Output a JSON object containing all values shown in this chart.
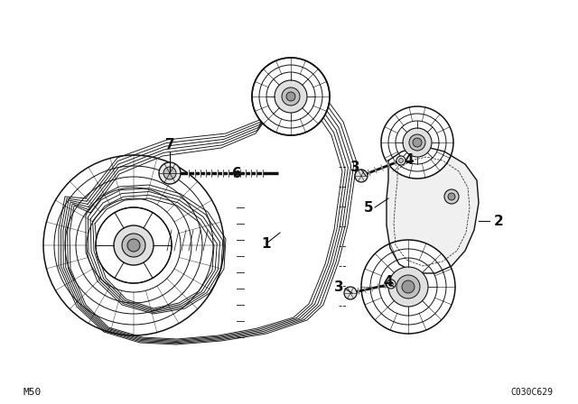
{
  "background_color": "#ffffff",
  "line_color": "#111111",
  "fig_width": 6.4,
  "fig_height": 4.48,
  "dpi": 100,
  "bottom_left_text": "M50",
  "bottom_right_text": "C030C629"
}
